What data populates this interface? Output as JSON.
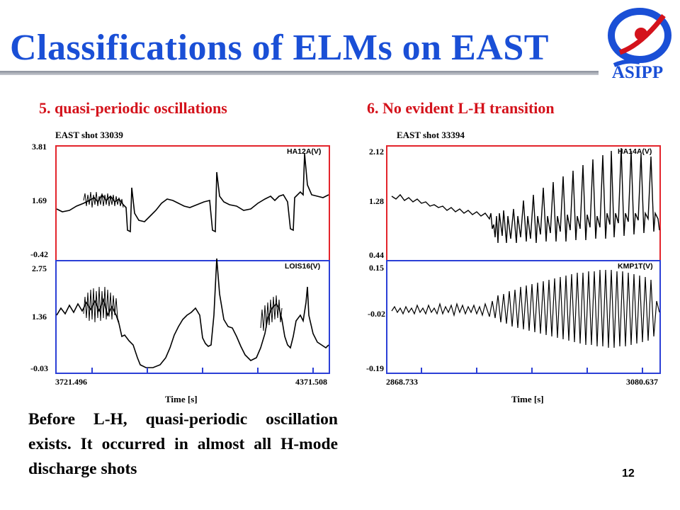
{
  "slide": {
    "title": "Classifications of ELMs on EAST",
    "logo_text": "ASIPP",
    "page_number": "12"
  },
  "colors": {
    "title": "#1a4fd6",
    "section": "#d4121b",
    "top_frame": "#e3242b",
    "bottom_frame": "#2b3fd6"
  },
  "left": {
    "section_title": "5.  quasi-periodic oscillations",
    "shot": "EAST shot 33039",
    "top_signal": "HA12A(V)",
    "bottom_signal": "LOIS16(V)",
    "top_yticks": [
      "3.81",
      "1.69",
      "-0.42"
    ],
    "bottom_yticks": [
      "2.75",
      "1.36",
      "-0.03"
    ],
    "x_start": "3721.496",
    "x_end": "4371.508",
    "xlabel": "Time [s]"
  },
  "right": {
    "section_title": "6.  No evident L-H transition",
    "shot": "EAST shot  33394",
    "top_signal": "HA14A(V)",
    "bottom_signal": "KMP1T(V)",
    "top_yticks": [
      "2.12",
      "1.28",
      "0.44"
    ],
    "bottom_yticks": [
      "0.15",
      "-0.02",
      "-0.19"
    ],
    "x_start": "2868.733",
    "x_end": "3080.637",
    "xlabel": "Time [s]"
  },
  "paragraph": "Before L-H, quasi-periodic oscillation exists. It occurred in almost all H-mode discharge shots"
}
